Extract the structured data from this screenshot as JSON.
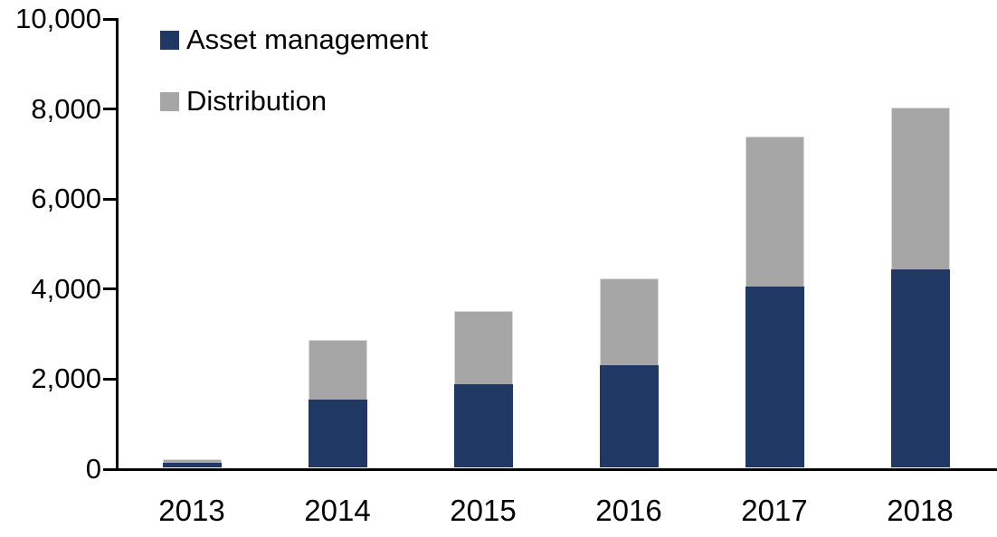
{
  "chart_data": {
    "type": "bar",
    "stacked": true,
    "title": "",
    "xlabel": "",
    "ylabel": "",
    "categories": [
      "2013",
      "2014",
      "2015",
      "2016",
      "2017",
      "2018"
    ],
    "series": [
      {
        "name": "Asset management",
        "color": "#1F3864",
        "values": [
          120,
          1510,
          1850,
          2270,
          4020,
          4400
        ]
      },
      {
        "name": "Distribution",
        "color": "#A6A6A6",
        "values": [
          80,
          1330,
          1630,
          1930,
          3340,
          3600
        ]
      }
    ],
    "stacked_totals": [
      200,
      2840,
      3480,
      4200,
      7360,
      8000
    ],
    "ylim": [
      0,
      10000
    ],
    "yticks": [
      0,
      2000,
      4000,
      6000,
      8000,
      10000
    ],
    "ytick_labels": [
      "0",
      "2,000",
      "4,000",
      "6,000",
      "8,000",
      "10,000"
    ],
    "grid": false,
    "legend_position": "top-left-inside",
    "axis_color": "#000000",
    "background_color": "#FFFFFF",
    "text_color": "#000000"
  }
}
